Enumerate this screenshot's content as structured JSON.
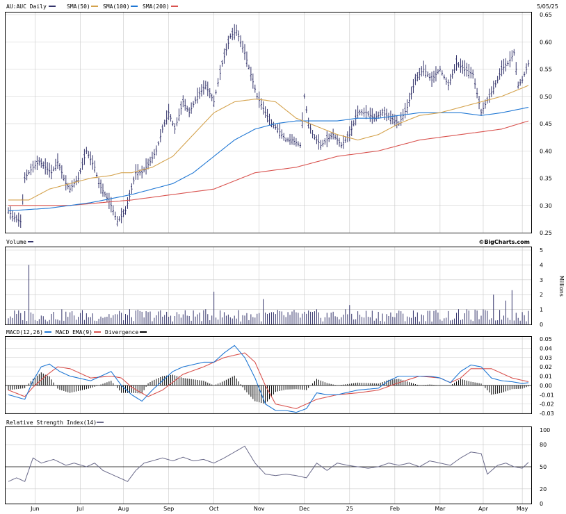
{
  "chart_data": [
    {
      "type": "ohlc",
      "panel": "price",
      "title": "AU:AUC Daily",
      "date": "5/05/25",
      "legend": [
        {
          "label": "",
          "color": "#33336a"
        },
        {
          "label": "SMA(50)",
          "color": "#d4a24c"
        },
        {
          "label": "SMA(100)",
          "color": "#1f77d4"
        },
        {
          "label": "SMA(200)",
          "color": "#d9534f"
        }
      ],
      "ylim": [
        0.25,
        0.65
      ],
      "yticks": [
        "0.65",
        "0.60",
        "0.55",
        "0.50",
        "0.45",
        "0.40",
        "0.35",
        "0.30",
        "0.25"
      ],
      "x_months": [
        "Jun",
        "Jul",
        "Aug",
        "Sep",
        "Oct",
        "Nov",
        "Dec",
        "25",
        "Feb",
        "Mar",
        "Apr",
        "May"
      ],
      "price_path": {
        "x": [
          0,
          2,
          6,
          8,
          12,
          15,
          21,
          24,
          28,
          30,
          34,
          38,
          42,
          44,
          47,
          50,
          53,
          57,
          60,
          62,
          65,
          69,
          72,
          75,
          78,
          81,
          85,
          88,
          92,
          96,
          100,
          104,
          108,
          111,
          115,
          118,
          121,
          125,
          128,
          131,
          135,
          138,
          142,
          144,
          146,
          148,
          152,
          155,
          158,
          162,
          166,
          170,
          174,
          178,
          182,
          186,
          190,
          194,
          198,
          202,
          206,
          210,
          214,
          218,
          222,
          226,
          230,
          234,
          238,
          240,
          243,
          246,
          248,
          250,
          253
        ],
        "y": [
          0.29,
          0.28,
          0.27,
          0.35,
          0.37,
          0.38,
          0.36,
          0.38,
          0.34,
          0.33,
          0.35,
          0.4,
          0.37,
          0.34,
          0.32,
          0.3,
          0.27,
          0.29,
          0.33,
          0.36,
          0.36,
          0.38,
          0.4,
          0.44,
          0.47,
          0.44,
          0.49,
          0.47,
          0.5,
          0.52,
          0.49,
          0.56,
          0.61,
          0.62,
          0.58,
          0.54,
          0.5,
          0.47,
          0.45,
          0.44,
          0.42,
          0.42,
          0.41,
          0.5,
          0.45,
          0.43,
          0.41,
          0.42,
          0.43,
          0.41,
          0.43,
          0.47,
          0.47,
          0.46,
          0.47,
          0.46,
          0.45,
          0.48,
          0.53,
          0.55,
          0.53,
          0.55,
          0.52,
          0.56,
          0.55,
          0.54,
          0.47,
          0.5,
          0.53,
          0.55,
          0.56,
          0.58,
          0.52,
          0.53,
          0.56
        ]
      },
      "sma50": {
        "x": [
          0,
          10,
          20,
          30,
          40,
          50,
          55,
          60,
          70,
          80,
          90,
          100,
          110,
          120,
          125,
          130,
          140,
          150,
          160,
          170,
          180,
          190,
          200,
          210,
          220,
          230,
          240,
          253
        ],
        "y": [
          0.31,
          0.31,
          0.33,
          0.34,
          0.35,
          0.355,
          0.36,
          0.36,
          0.37,
          0.39,
          0.43,
          0.47,
          0.49,
          0.495,
          0.493,
          0.49,
          0.46,
          0.445,
          0.43,
          0.42,
          0.43,
          0.45,
          0.465,
          0.47,
          0.48,
          0.49,
          0.5,
          0.52
        ]
      },
      "sma100": {
        "x": [
          0,
          20,
          40,
          60,
          70,
          80,
          90,
          100,
          110,
          120,
          130,
          140,
          150,
          160,
          170,
          180,
          190,
          200,
          210,
          220,
          230,
          240,
          253
        ],
        "y": [
          0.29,
          0.295,
          0.305,
          0.32,
          0.33,
          0.34,
          0.36,
          0.39,
          0.42,
          0.44,
          0.45,
          0.455,
          0.455,
          0.455,
          0.46,
          0.46,
          0.465,
          0.47,
          0.47,
          0.47,
          0.465,
          0.47,
          0.48
        ]
      },
      "sma200": {
        "x": [
          0,
          30,
          60,
          80,
          100,
          120,
          140,
          160,
          180,
          200,
          220,
          240,
          253
        ],
        "y": [
          0.3,
          0.3,
          0.31,
          0.32,
          0.33,
          0.36,
          0.37,
          0.39,
          0.4,
          0.42,
          0.43,
          0.44,
          0.455
        ]
      }
    },
    {
      "type": "bar",
      "panel": "volume",
      "title": "Volume",
      "source": "©BigCharts.com",
      "ylabel": "Millions",
      "ylim": [
        0,
        5
      ],
      "yticks": [
        "5",
        "4",
        "3",
        "2",
        "1",
        "0"
      ],
      "typical_volume_millions": 0.6,
      "spikes": [
        {
          "x": 10,
          "y": 4.0
        },
        {
          "x": 100,
          "y": 2.2
        },
        {
          "x": 124,
          "y": 1.7
        },
        {
          "x": 166,
          "y": 1.3
        },
        {
          "x": 236,
          "y": 2.0
        },
        {
          "x": 242,
          "y": 1.6
        },
        {
          "x": 245,
          "y": 2.3
        }
      ]
    },
    {
      "type": "line",
      "panel": "macd",
      "title": "MACD(12,26)",
      "legend": [
        {
          "label": "MACD(12,26)",
          "color": "#1f77d4"
        },
        {
          "label": "MACD EMA(9)",
          "color": "#d9534f"
        },
        {
          "label": "Divergence",
          "color": "#000000"
        }
      ],
      "ylim": [
        -0.03,
        0.05
      ],
      "yticks": [
        "0.05",
        "0.04",
        "0.03",
        "0.02",
        "0.01",
        "0.00",
        "-0.01",
        "-0.02",
        "-0.03"
      ],
      "macd": {
        "x": [
          0,
          8,
          12,
          16,
          20,
          25,
          30,
          40,
          45,
          50,
          55,
          60,
          65,
          70,
          75,
          80,
          85,
          95,
          100,
          105,
          110,
          115,
          120,
          125,
          130,
          135,
          140,
          145,
          150,
          155,
          160,
          170,
          180,
          185,
          190,
          200,
          205,
          210,
          215,
          220,
          225,
          230,
          235,
          240,
          245,
          250,
          253
        ],
        "y": [
          -0.01,
          -0.015,
          0.005,
          0.02,
          0.023,
          0.015,
          0.01,
          0.005,
          0.01,
          0.015,
          0.0,
          -0.01,
          -0.017,
          -0.005,
          0.005,
          0.015,
          0.02,
          0.025,
          0.025,
          0.035,
          0.043,
          0.03,
          0.008,
          -0.02,
          -0.027,
          -0.027,
          -0.029,
          -0.025,
          -0.008,
          -0.01,
          -0.01,
          -0.005,
          -0.003,
          0.005,
          0.01,
          0.01,
          0.01,
          0.008,
          0.003,
          0.015,
          0.022,
          0.02,
          0.008,
          0.005,
          0.004,
          0.002,
          0.003
        ]
      },
      "signal": {
        "x": [
          0,
          8,
          12,
          18,
          24,
          30,
          40,
          50,
          55,
          60,
          68,
          75,
          85,
          95,
          105,
          115,
          120,
          125,
          130,
          140,
          150,
          160,
          170,
          180,
          190,
          200,
          210,
          215,
          220,
          225,
          235,
          245,
          253
        ],
        "y": [
          -0.005,
          -0.012,
          -0.002,
          0.01,
          0.02,
          0.018,
          0.008,
          0.01,
          0.008,
          -0.002,
          -0.012,
          -0.005,
          0.012,
          0.02,
          0.03,
          0.035,
          0.025,
          0.0,
          -0.02,
          -0.025,
          -0.015,
          -0.01,
          -0.008,
          -0.005,
          0.003,
          0.01,
          0.008,
          0.003,
          0.008,
          0.018,
          0.018,
          0.008,
          0.004
        ]
      }
    },
    {
      "type": "line",
      "panel": "rsi",
      "title": "Relative Strength Index(14)",
      "legend": [
        {
          "label": "Relative Strength Index(14)",
          "color": "#6a6a8a"
        }
      ],
      "ylim": [
        0,
        100
      ],
      "yticks": [
        "100",
        "80",
        "50",
        "20",
        "0"
      ],
      "rsi": {
        "x": [
          0,
          4,
          8,
          12,
          16,
          22,
          28,
          32,
          38,
          42,
          46,
          50,
          54,
          58,
          62,
          66,
          70,
          75,
          80,
          85,
          90,
          95,
          100,
          105,
          110,
          115,
          120,
          125,
          130,
          135,
          140,
          145,
          150,
          155,
          160,
          165,
          170,
          175,
          180,
          185,
          190,
          195,
          200,
          205,
          210,
          215,
          220,
          225,
          230,
          233,
          238,
          242,
          246,
          250,
          253
        ],
        "y": [
          30,
          35,
          30,
          62,
          55,
          60,
          52,
          55,
          50,
          55,
          45,
          40,
          35,
          30,
          45,
          55,
          58,
          62,
          58,
          63,
          58,
          60,
          55,
          62,
          70,
          78,
          55,
          40,
          38,
          40,
          38,
          35,
          55,
          45,
          55,
          52,
          50,
          48,
          50,
          55,
          52,
          55,
          50,
          58,
          55,
          52,
          62,
          70,
          68,
          40,
          52,
          55,
          50,
          48,
          56
        ]
      }
    }
  ]
}
